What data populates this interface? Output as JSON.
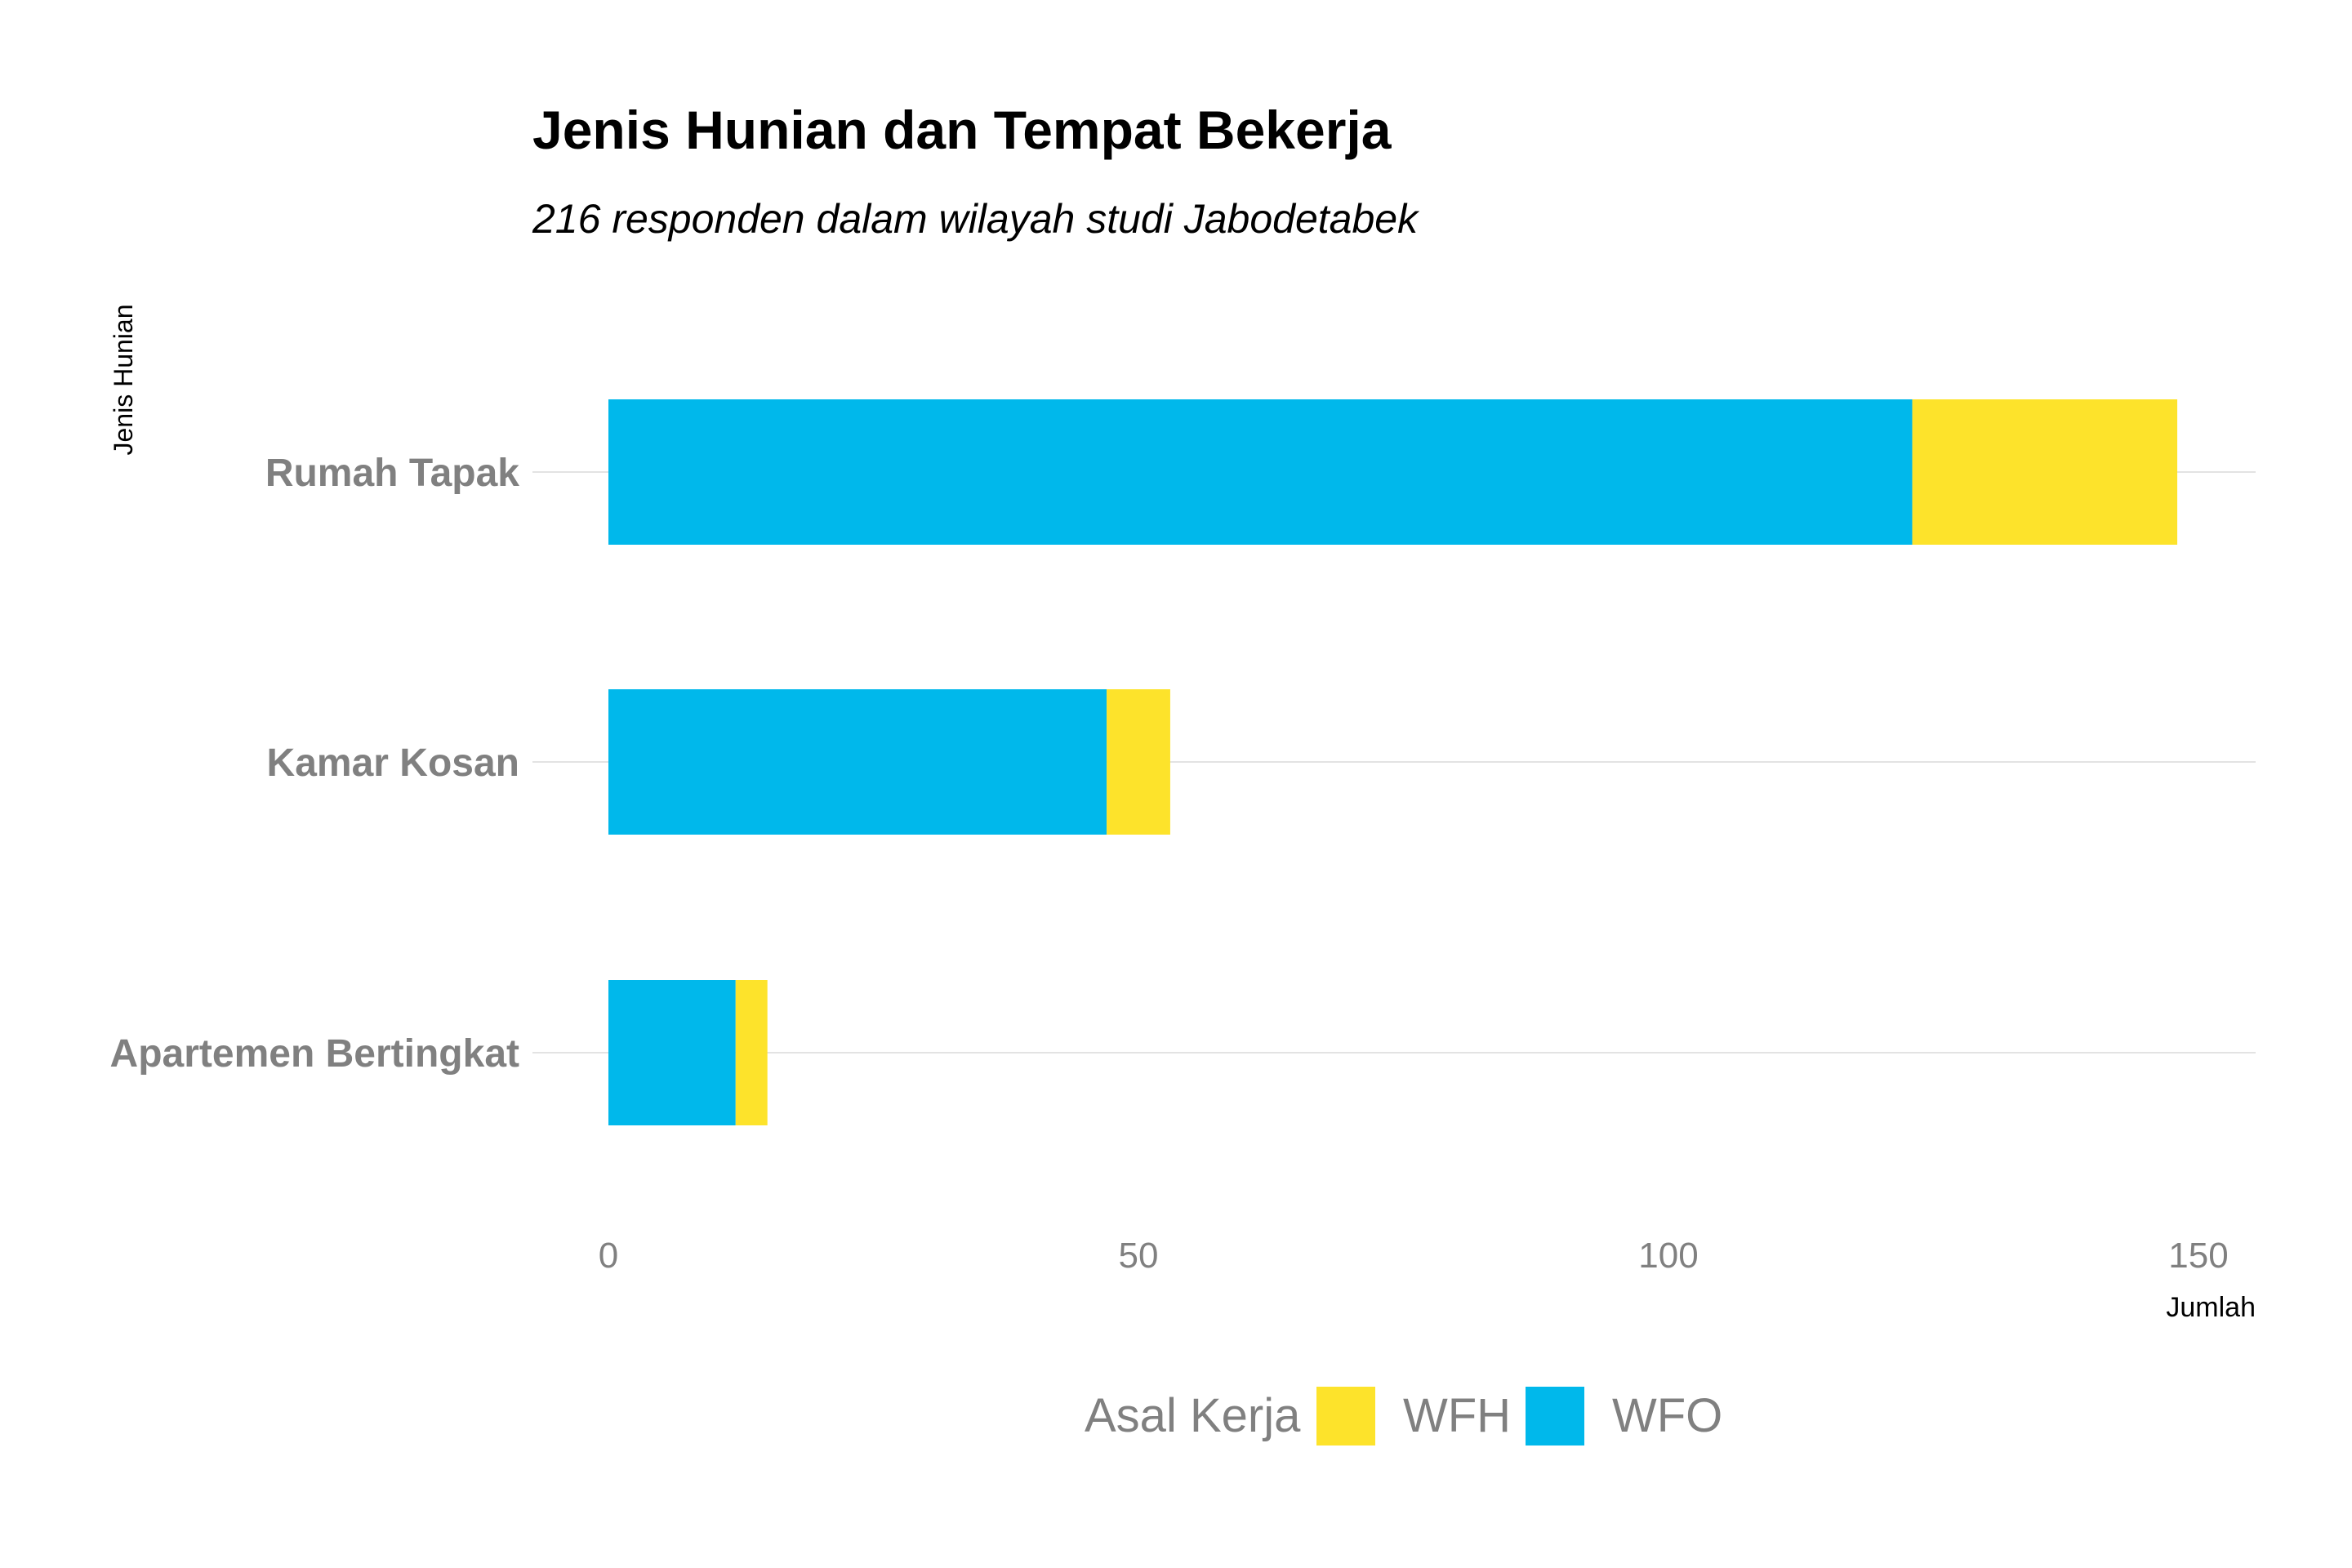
{
  "chart_data": {
    "type": "bar",
    "orientation": "horizontal",
    "stacked": true,
    "title": "Jenis Hunian dan Tempat Bekerja",
    "subtitle": "216 responden dalam wilayah studi Jabodetabek",
    "xlabel": "Jumlah",
    "ylabel": "Jenis Hunian",
    "categories": [
      "Rumah Tapak",
      "Kamar Kosan",
      "Apartemen Bertingkat"
    ],
    "series": [
      {
        "name": "WFO",
        "color": "#00b8eb",
        "values": [
          123,
          47,
          12
        ]
      },
      {
        "name": "WFH",
        "color": "#fde32b",
        "values": [
          25,
          6,
          3
        ]
      }
    ],
    "xlim": [
      0,
      150
    ],
    "xticks": [
      "0",
      "50",
      "100",
      "150"
    ],
    "grid": "horizontal-major",
    "legend": {
      "title": "Asal Kerja",
      "placement": "bottom",
      "entries": [
        {
          "label": "WFH",
          "color": "#fde32b"
        },
        {
          "label": "WFO",
          "color": "#00b8eb"
        }
      ]
    }
  }
}
